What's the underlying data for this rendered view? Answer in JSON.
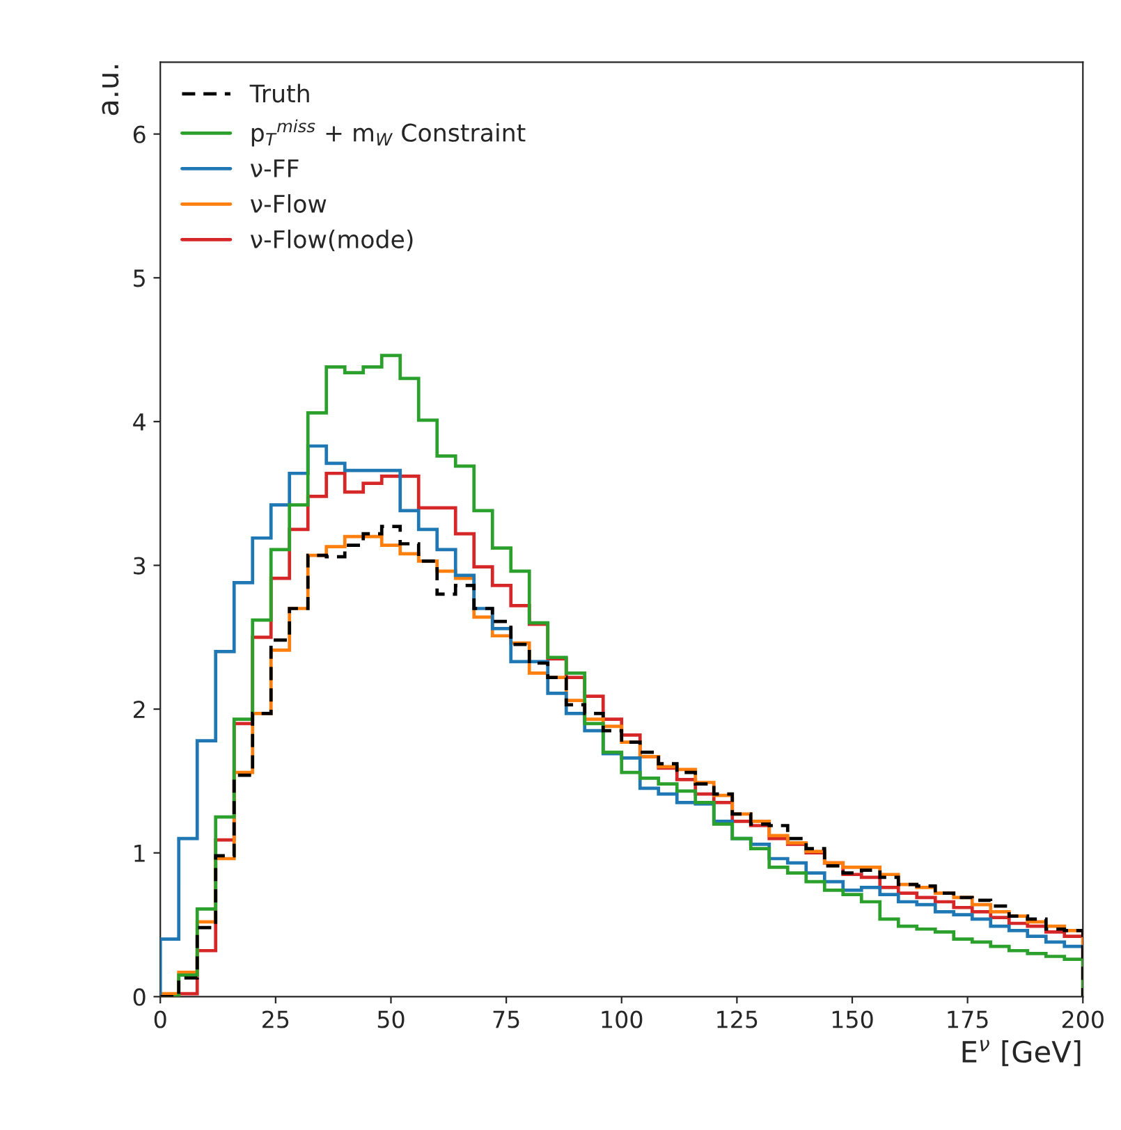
{
  "chart_data": {
    "type": "histogram",
    "xlabel": "E$^{ν}$ [GeV]",
    "ylabel": "a.u.",
    "bins": [
      0,
      4,
      8,
      12,
      16,
      20,
      24,
      28,
      32,
      36,
      40,
      44,
      48,
      52,
      56,
      60,
      64,
      68,
      72,
      76,
      80,
      84,
      88,
      92,
      96,
      100,
      104,
      108,
      112,
      116,
      120,
      124,
      128,
      132,
      136,
      140,
      144,
      148,
      152,
      156,
      160,
      164,
      168,
      172,
      176,
      180,
      184,
      188,
      192,
      196,
      200
    ],
    "xlim": [
      0,
      200
    ],
    "xticks": [
      0,
      25,
      50,
      75,
      100,
      125,
      150,
      175,
      200
    ],
    "ylim": [
      0,
      6.5
    ],
    "yticks": [
      0,
      1,
      2,
      3,
      4,
      5,
      6
    ],
    "grid": false,
    "legend": "top left",
    "series": [
      {
        "name": "Truth",
        "color": "#000000",
        "line_style": "dashed",
        "values": [
          0,
          0.13,
          0.48,
          0.98,
          1.54,
          1.97,
          2.48,
          2.7,
          3.07,
          3.06,
          3.14,
          3.22,
          3.27,
          3.15,
          3.03,
          2.8,
          2.86,
          2.7,
          2.61,
          2.45,
          2.32,
          2.22,
          2.03,
          1.97,
          1.85,
          1.77,
          1.7,
          1.62,
          1.56,
          1.48,
          1.41,
          1.27,
          1.2,
          1.19,
          1.1,
          1.03,
          0.91,
          0.86,
          0.88,
          0.83,
          0.78,
          0.77,
          0.72,
          0.69,
          0.67,
          0.63,
          0.56,
          0.54,
          0.47,
          0.46
        ]
      },
      {
        "name": "p$_{T}$$^{miss}$ + m$_{W}$ Constraint",
        "color": "#2ca02c",
        "line_style": "solid",
        "values": [
          0,
          0.15,
          0.61,
          1.25,
          1.93,
          2.62,
          3.11,
          3.42,
          4.06,
          4.38,
          4.34,
          4.38,
          4.46,
          4.3,
          4.01,
          3.76,
          3.69,
          3.38,
          3.12,
          2.96,
          2.6,
          2.36,
          2.25,
          1.9,
          1.7,
          1.56,
          1.52,
          1.48,
          1.43,
          1.35,
          1.2,
          1.1,
          1.03,
          0.9,
          0.86,
          0.8,
          0.74,
          0.71,
          0.66,
          0.54,
          0.49,
          0.47,
          0.45,
          0.4,
          0.38,
          0.35,
          0.32,
          0.3,
          0.28,
          0.26
        ]
      },
      {
        "name": "ν-FF",
        "color": "#1f77b4",
        "line_style": "solid",
        "values": [
          0.4,
          1.1,
          1.78,
          2.4,
          2.88,
          3.19,
          3.42,
          3.64,
          3.83,
          3.71,
          3.66,
          3.66,
          3.66,
          3.38,
          3.25,
          3.11,
          2.93,
          2.7,
          2.56,
          2.33,
          2.33,
          2.11,
          1.97,
          1.85,
          1.69,
          1.66,
          1.45,
          1.41,
          1.35,
          1.34,
          1.22,
          1.1,
          1.06,
          0.96,
          0.93,
          0.86,
          0.8,
          0.74,
          0.76,
          0.71,
          0.66,
          0.64,
          0.59,
          0.57,
          0.54,
          0.49,
          0.46,
          0.42,
          0.38,
          0.35
        ]
      },
      {
        "name": "ν-Flow",
        "color": "#ff7f0e",
        "line_style": "solid",
        "values": [
          0.02,
          0.17,
          0.52,
          0.96,
          1.56,
          1.97,
          2.41,
          2.7,
          3.07,
          3.13,
          3.2,
          3.2,
          3.14,
          3.08,
          3.03,
          2.96,
          2.91,
          2.64,
          2.51,
          2.46,
          2.25,
          2.22,
          2.06,
          1.93,
          1.88,
          1.77,
          1.67,
          1.6,
          1.58,
          1.49,
          1.4,
          1.27,
          1.22,
          1.12,
          1.07,
          1.01,
          0.93,
          0.9,
          0.9,
          0.85,
          0.78,
          0.76,
          0.72,
          0.69,
          0.64,
          0.59,
          0.56,
          0.52,
          0.49,
          0.46
        ]
      },
      {
        "name": "ν-Flow(mode)",
        "color": "#d62728",
        "line_style": "solid",
        "values": [
          0,
          0.02,
          0.32,
          1.09,
          1.9,
          2.5,
          2.91,
          3.25,
          3.48,
          3.64,
          3.51,
          3.57,
          3.62,
          3.62,
          3.4,
          3.4,
          3.22,
          2.99,
          2.86,
          2.72,
          2.59,
          2.35,
          2.22,
          2.09,
          1.93,
          1.82,
          1.67,
          1.59,
          1.51,
          1.41,
          1.35,
          1.22,
          1.19,
          1.1,
          1.06,
          1.0,
          0.93,
          0.85,
          0.83,
          0.76,
          0.72,
          0.69,
          0.66,
          0.62,
          0.59,
          0.55,
          0.51,
          0.49,
          0.45,
          0.42
        ]
      }
    ]
  }
}
